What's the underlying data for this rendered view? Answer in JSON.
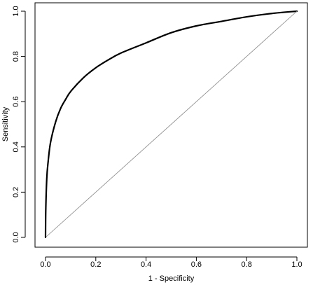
{
  "chart_data": {
    "type": "line",
    "xlabel": "1 - Specificity",
    "ylabel": "Sensitivity",
    "xlim": [
      0,
      1
    ],
    "ylim": [
      0,
      1
    ],
    "xticks": [
      0.0,
      0.2,
      0.4,
      0.6,
      0.8,
      1.0
    ],
    "yticks": [
      0.0,
      0.2,
      0.4,
      0.6,
      0.8,
      1.0
    ],
    "xtick_labels": [
      "0.0",
      "0.2",
      "0.4",
      "0.6",
      "0.8",
      "1.0"
    ],
    "ytick_labels": [
      "0.0",
      "0.2",
      "0.4",
      "0.6",
      "0.8",
      "1.0"
    ],
    "grid": false,
    "series": [
      {
        "style": "curve",
        "color": "#000000",
        "x": [
          0.0,
          0.001,
          0.005,
          0.01,
          0.02,
          0.04,
          0.06,
          0.08,
          0.1,
          0.15,
          0.2,
          0.25,
          0.3,
          0.4,
          0.5,
          0.6,
          0.7,
          0.8,
          0.9,
          1.0
        ],
        "y": [
          0.0,
          0.12,
          0.26,
          0.33,
          0.42,
          0.51,
          0.57,
          0.61,
          0.645,
          0.705,
          0.75,
          0.785,
          0.815,
          0.86,
          0.905,
          0.935,
          0.955,
          0.975,
          0.99,
          1.0
        ]
      },
      {
        "style": "reference",
        "color": "#888888",
        "x": [
          0,
          1
        ],
        "y": [
          0,
          1
        ]
      }
    ]
  }
}
